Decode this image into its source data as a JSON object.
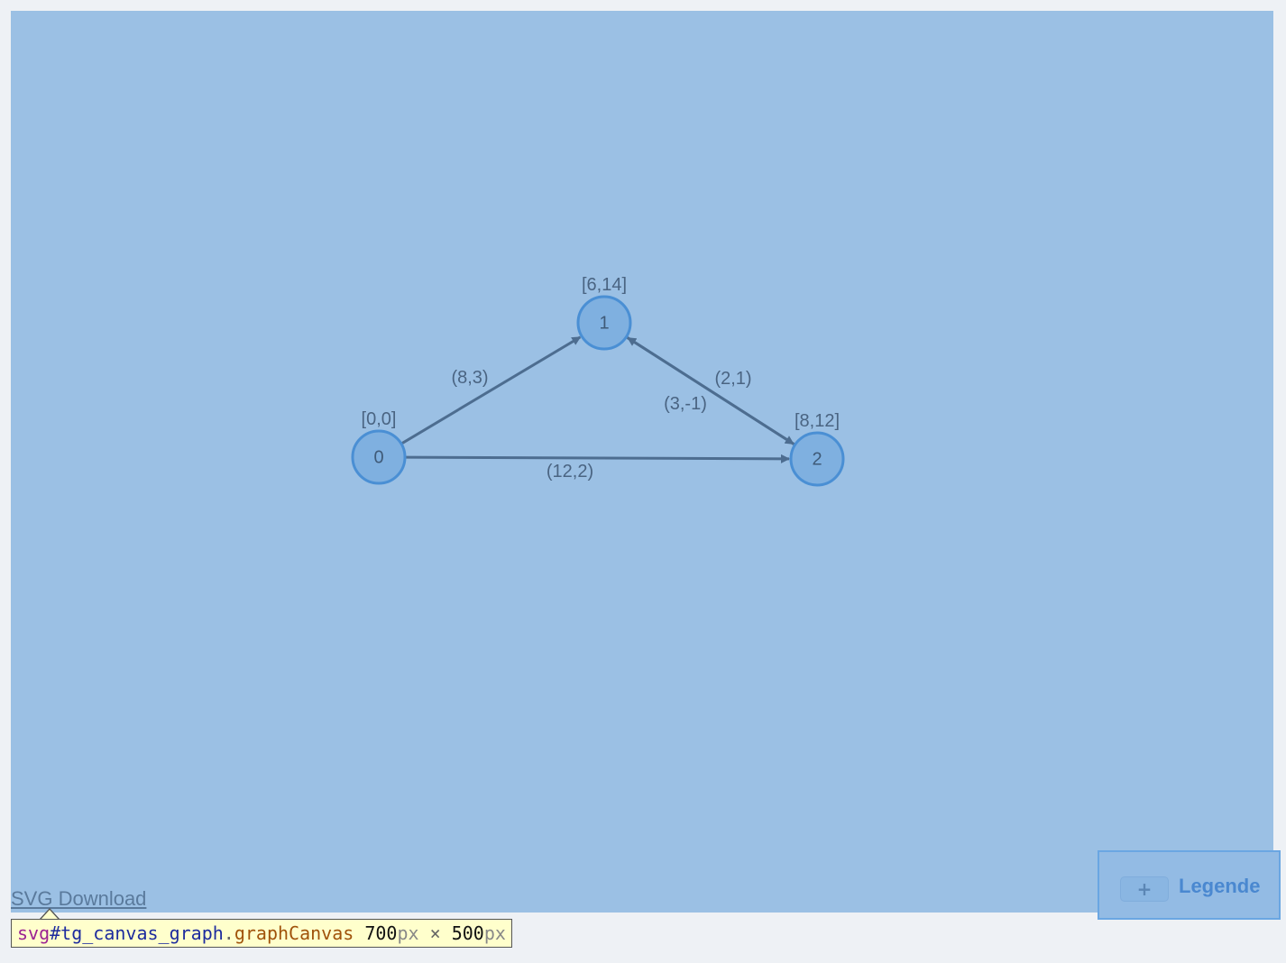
{
  "graph": {
    "nodes": [
      {
        "id": "0",
        "label": "0",
        "annotation": "[0,0]"
      },
      {
        "id": "1",
        "label": "1",
        "annotation": "[6,14]"
      },
      {
        "id": "2",
        "label": "2",
        "annotation": "[8,12]"
      }
    ],
    "edges": [
      {
        "from": "0",
        "to": "1",
        "label": "(8,3)"
      },
      {
        "from": "0",
        "to": "2",
        "label": "(12,2)"
      },
      {
        "from": "1",
        "to": "2",
        "label": "(2,1)"
      },
      {
        "from": "2",
        "to": "1",
        "label": "(3,-1)"
      }
    ]
  },
  "legend": {
    "toggle_label": "+",
    "title": "Legende"
  },
  "download_link": "SVG Download",
  "inspector": {
    "tag": "svg",
    "id": "#tg_canvas_graph",
    "dot": ".",
    "class": "graphCanvas",
    "width": "700",
    "height": "500",
    "unit": "px",
    "separator": "×"
  },
  "colors": {
    "canvas_bg": "#9bc0e4",
    "node_fill": "#7fb0e0",
    "node_stroke": "#4a8fd4",
    "edge": "#4d6d90",
    "legend_accent": "#4a88d0"
  }
}
